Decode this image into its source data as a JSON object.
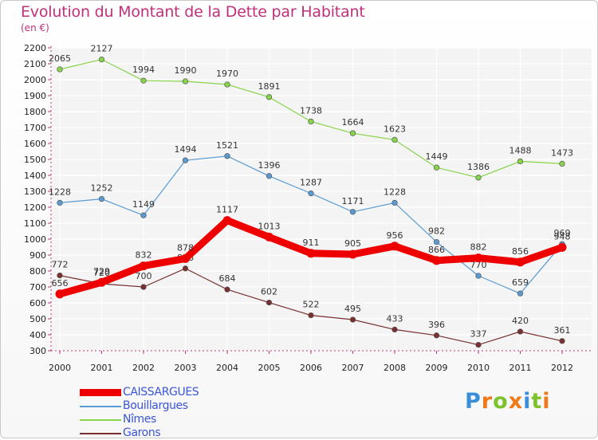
{
  "title": "Evolution du Montant de la Dette par Habitant",
  "subtitle": "(en €)",
  "chart_data": {
    "type": "line",
    "x": [
      "2000",
      "2001",
      "2002",
      "2003",
      "2004",
      "2005",
      "2006",
      "2007",
      "2008",
      "2009",
      "2010",
      "2011",
      "2012"
    ],
    "ylim": [
      300,
      2200
    ],
    "yticks": [
      300,
      400,
      500,
      600,
      700,
      800,
      900,
      1000,
      1100,
      1200,
      1300,
      1400,
      1500,
      1600,
      1700,
      1800,
      1900,
      2000,
      2100,
      2200
    ],
    "grid": true,
    "legend_position": "bottom-left",
    "series": [
      {
        "name": "Nîmes",
        "color": "#88d44a",
        "values": [
          2065,
          2127,
          1994,
          1990,
          1970,
          1891,
          1738,
          1664,
          1623,
          1449,
          1386,
          1488,
          1473
        ]
      },
      {
        "name": "Bouillargues",
        "color": "#5a9bd4",
        "values": [
          1228,
          1252,
          1149,
          1494,
          1521,
          1396,
          1287,
          1171,
          1228,
          982,
          770,
          659,
          969
        ]
      },
      {
        "name": "Garons",
        "color": "#7a3030",
        "values": [
          772,
          720,
          700,
          816,
          684,
          602,
          522,
          495,
          433,
          396,
          337,
          420,
          361
        ]
      },
      {
        "name": "CAISSARGUES",
        "color": "#ee0000",
        "values": [
          656,
          729,
          832,
          878,
          1117,
          1013,
          911,
          905,
          956,
          866,
          882,
          856,
          948
        ]
      }
    ]
  },
  "logo": {
    "text": "Proxiti",
    "colors": [
      "#3a8fd8",
      "#f07a1a",
      "#7cc22a",
      "#f07a1a",
      "#3a8fd8",
      "#7cc22a",
      "#f07a1a"
    ]
  }
}
